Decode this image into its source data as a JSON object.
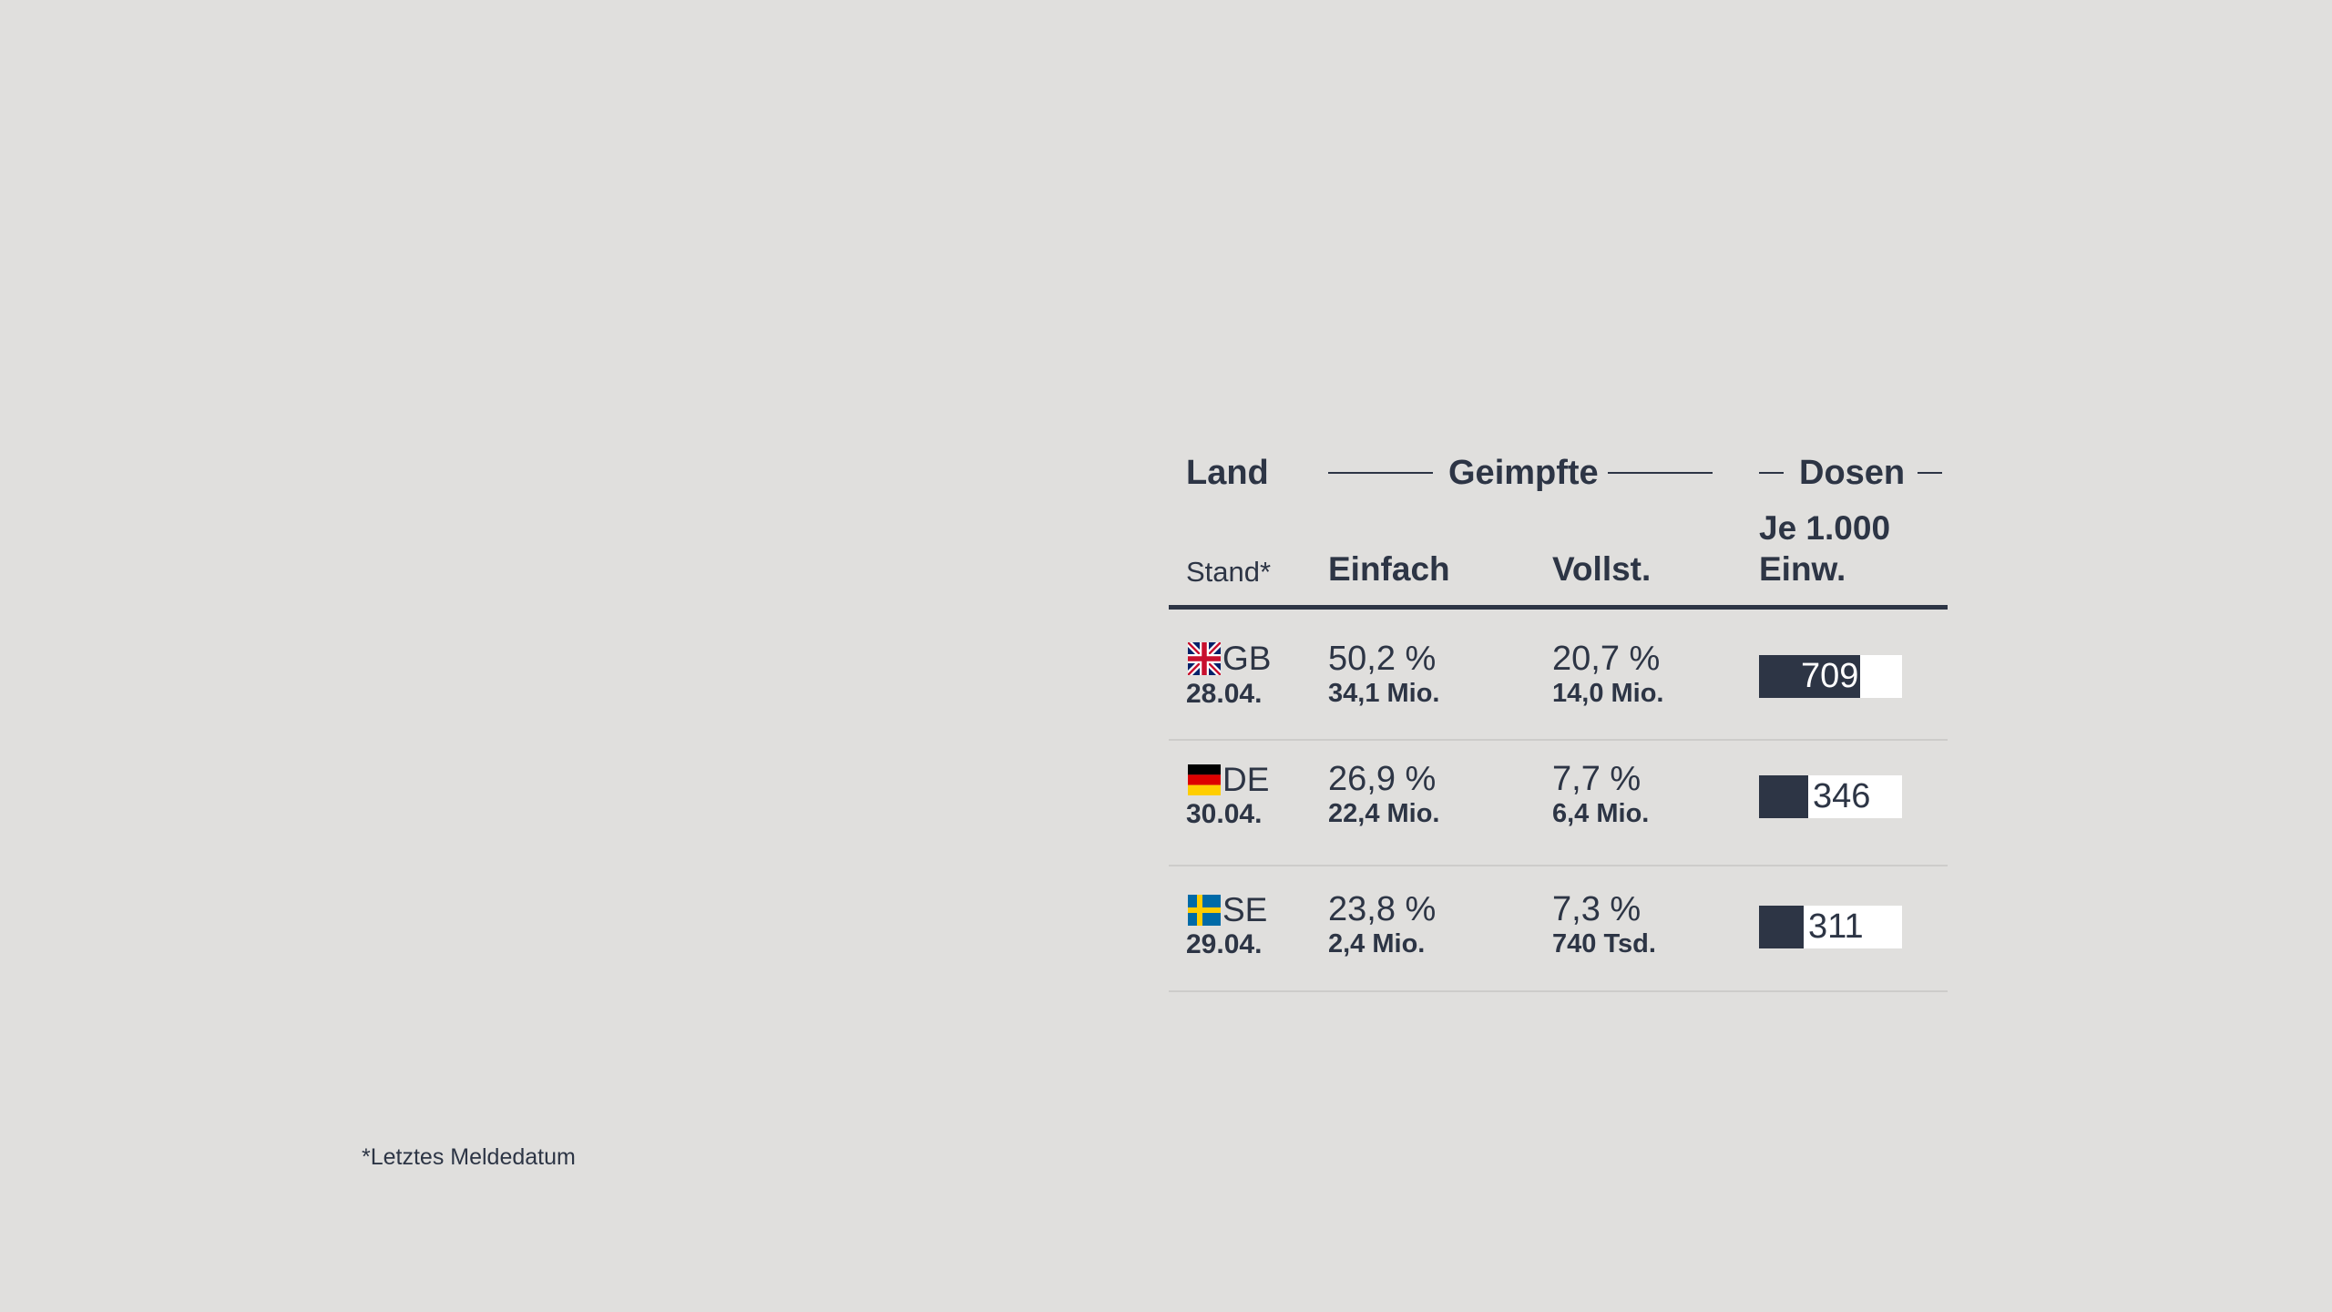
{
  "colors": {
    "background": "#e0dfdd",
    "ink": "#2d3545",
    "bar_track": "#ffffff",
    "row_divider": "#cdccca"
  },
  "header": {
    "land": "Land",
    "geimpfte": "Geimpfte",
    "dosen": "Dosen",
    "stand": "Stand*",
    "einfach": "Einfach",
    "vollst": "Vollst.",
    "je_line1": "Je 1.000",
    "je_line2": "Einw."
  },
  "chart_data": {
    "type": "table",
    "columns": [
      "Land",
      "Einfach",
      "Vollst.",
      "Je 1.000 Einw."
    ],
    "bar_max": 1000,
    "rows": [
      {
        "flag_icon": "uk-flag-icon",
        "country": "GB",
        "date": "28.04.",
        "einfach_pct": "50,2 %",
        "einfach_abs": "34,1 Mio.",
        "vollst_pct": "20,7 %",
        "vollst_abs": "14,0 Mio.",
        "doses": 709,
        "doses_label": "709"
      },
      {
        "flag_icon": "germany-flag-icon",
        "country": "DE",
        "date": "30.04.",
        "einfach_pct": "26,9 %",
        "einfach_abs": "22,4 Mio.",
        "vollst_pct": "7,7 %",
        "vollst_abs": "6,4 Mio.",
        "doses": 346,
        "doses_label": "346"
      },
      {
        "flag_icon": "sweden-flag-icon",
        "country": "SE",
        "date": "29.04.",
        "einfach_pct": "23,8 %",
        "einfach_abs": "2,4 Mio.",
        "vollst_pct": "7,3 %",
        "vollst_abs": "740 Tsd.",
        "doses": 311,
        "doses_label": "311"
      }
    ]
  },
  "footnote": "*Letztes Meldedatum"
}
